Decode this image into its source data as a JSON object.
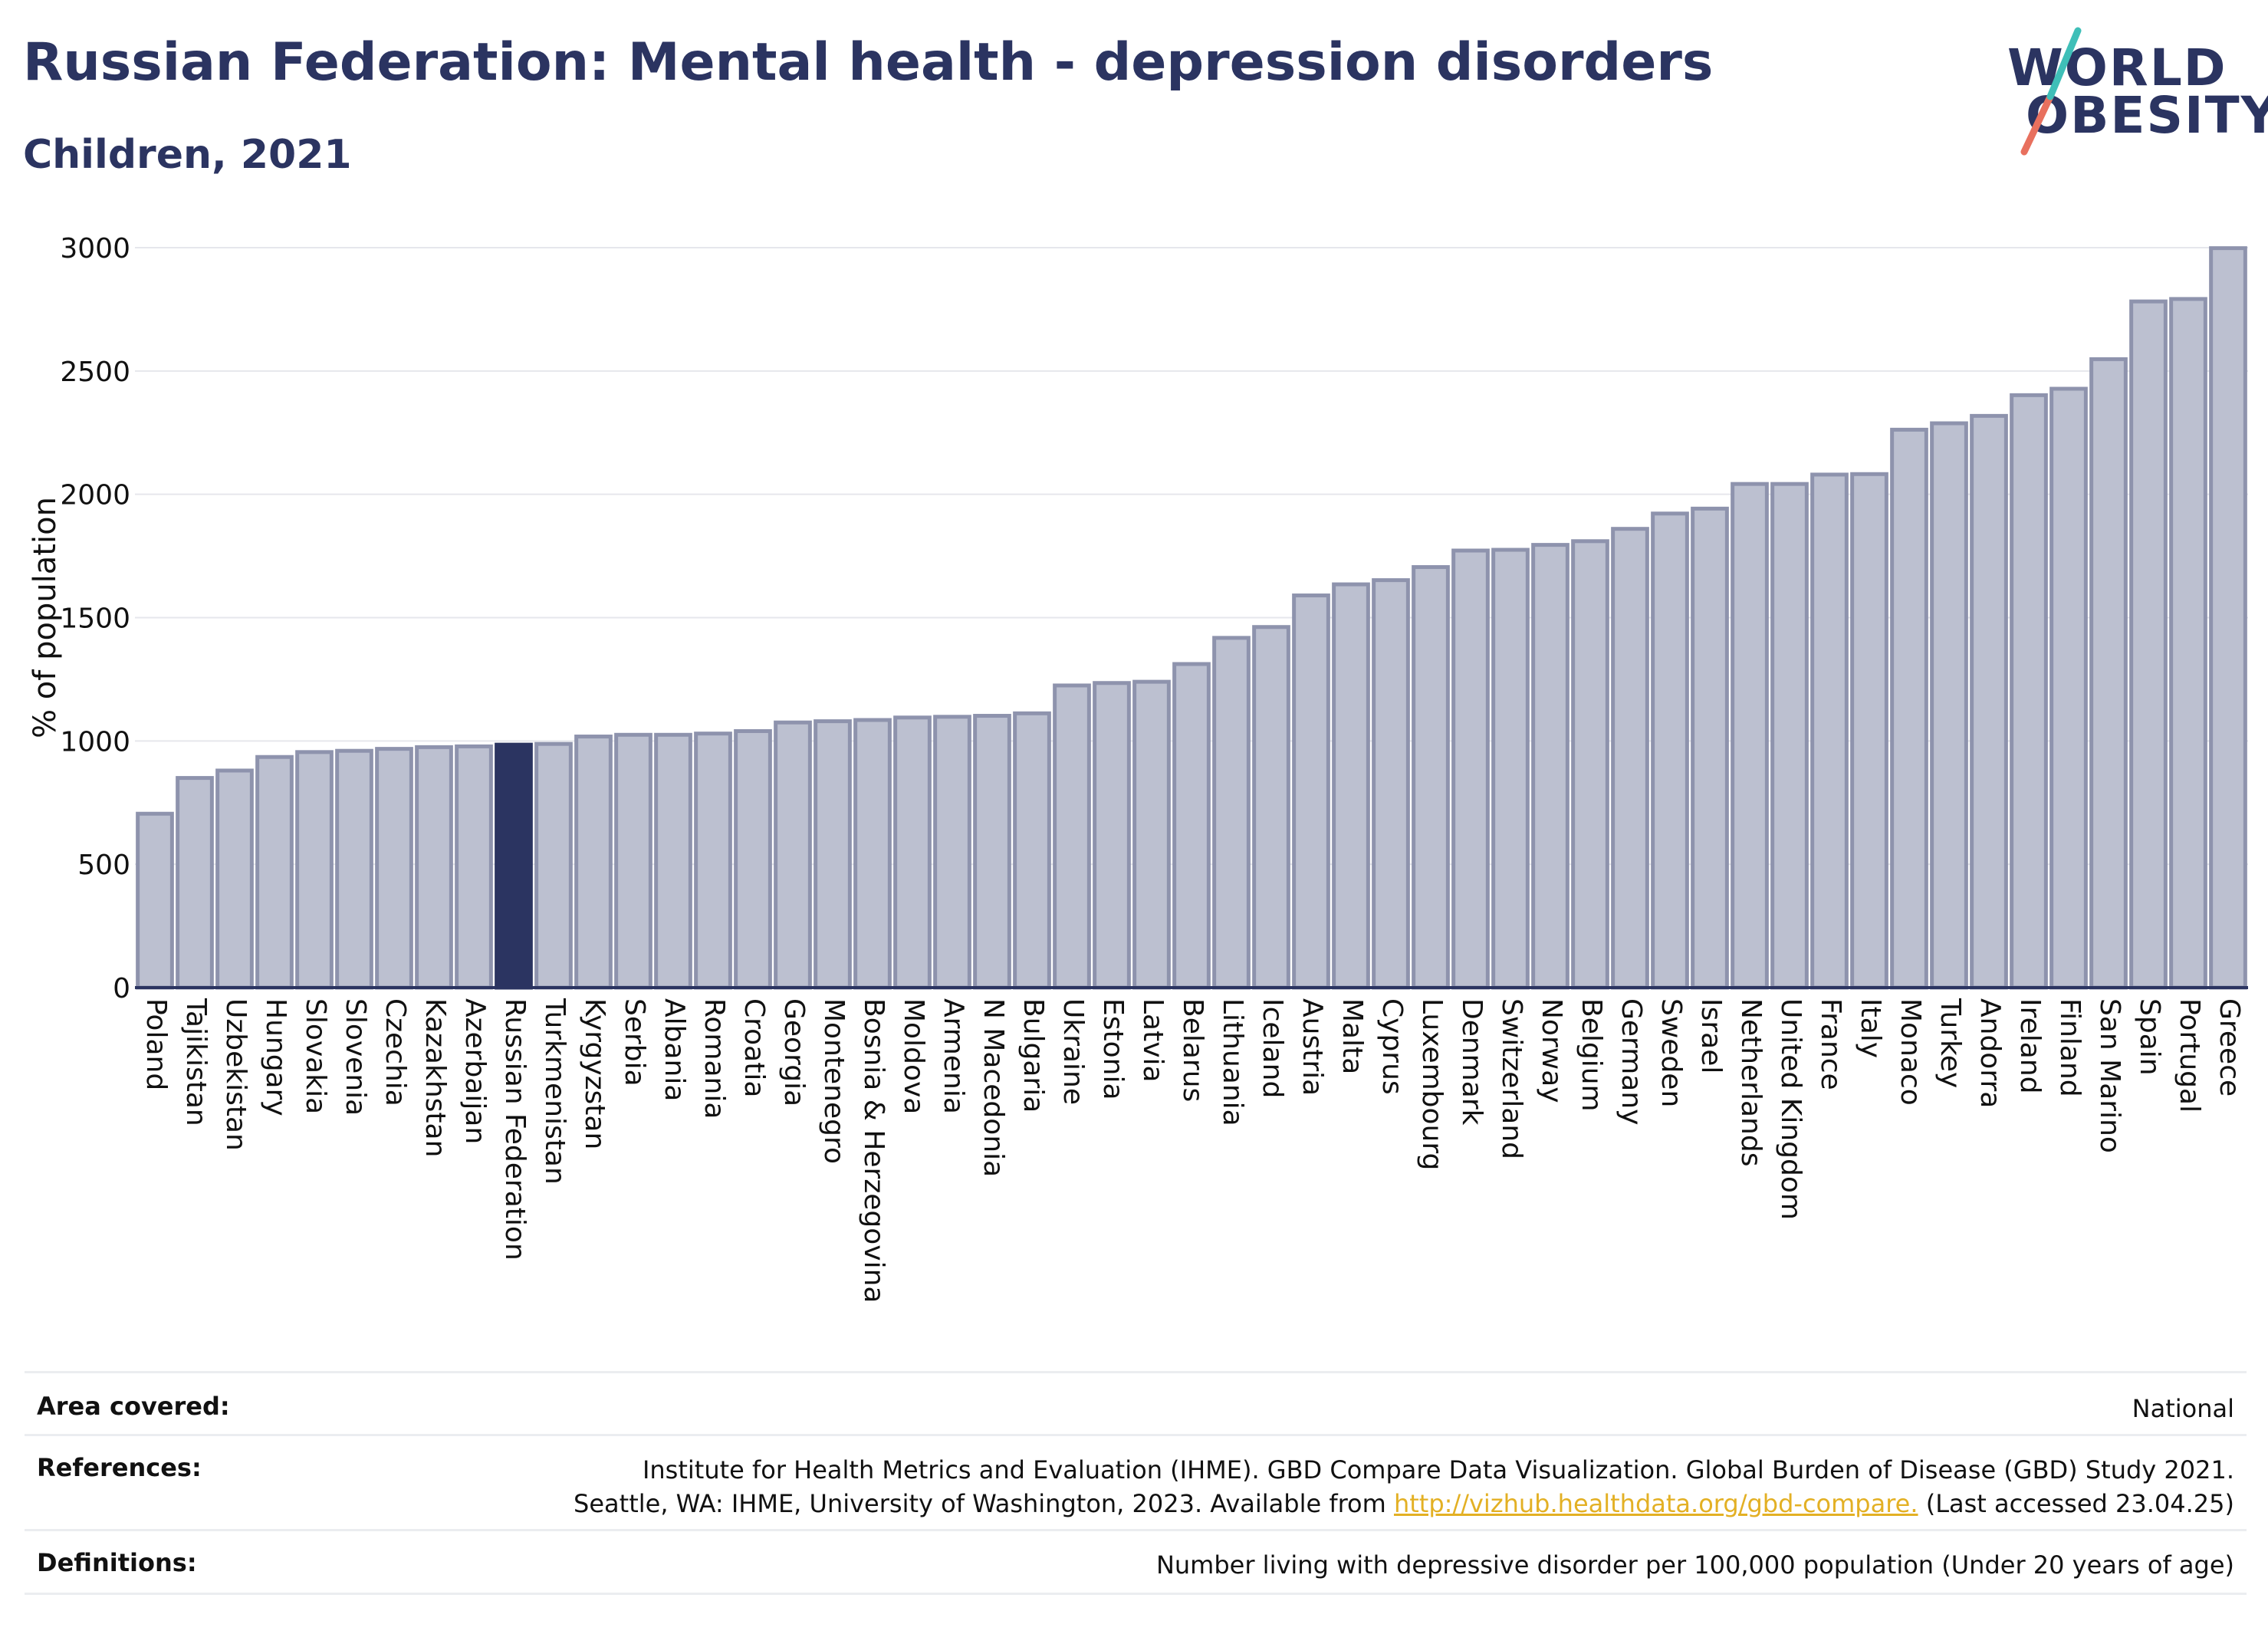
{
  "header": {
    "title": "Russian Federation: Mental health - depression disorders",
    "subtitle": "Children, 2021"
  },
  "logo": {
    "line1": "WORLD",
    "line2": "OBESITY"
  },
  "colors": {
    "bar": "#bcc0d0",
    "bar_border": "#8e93ad",
    "highlight": "#2b3461",
    "text": "#2b3461",
    "link": "#e3b024"
  },
  "chart_data": {
    "type": "bar",
    "ylabel": "% of population",
    "ylim": [
      0,
      3000
    ],
    "yticks": [
      0,
      500,
      1000,
      1500,
      2000,
      2500,
      3000
    ],
    "grid": true,
    "highlight": "Russian Federation",
    "categories": [
      "Poland",
      "Tajikistan",
      "Uzbekistan",
      "Hungary",
      "Slovakia",
      "Slovenia",
      "Czechia",
      "Kazakhstan",
      "Azerbaijan",
      "Russian Federation",
      "Turkmenistan",
      "Kyrgyzstan",
      "Serbia",
      "Albania",
      "Romania",
      "Croatia",
      "Georgia",
      "Montenegro",
      "Bosnia & Herzegovina",
      "Moldova",
      "Armenia",
      "N Macedonia",
      "Bulgaria",
      "Ukraine",
      "Estonia",
      "Latvia",
      "Belarus",
      "Lithuania",
      "Iceland",
      "Austria",
      "Malta",
      "Cyprus",
      "Luxembourg",
      "Denmark",
      "Switzerland",
      "Norway",
      "Belgium",
      "Germany",
      "Sweden",
      "Israel",
      "Netherlands",
      "United Kingdom",
      "France",
      "Italy",
      "Monaco",
      "Turkey",
      "Andorra",
      "Ireland",
      "Finland",
      "San Marino",
      "Spain",
      "Portugal",
      "Greece"
    ],
    "values": [
      705,
      850,
      880,
      935,
      955,
      960,
      968,
      975,
      978,
      985,
      988,
      1018,
      1025,
      1025,
      1030,
      1040,
      1075,
      1080,
      1085,
      1095,
      1098,
      1102,
      1112,
      1225,
      1235,
      1240,
      1312,
      1418,
      1462,
      1590,
      1635,
      1652,
      1705,
      1772,
      1775,
      1795,
      1810,
      1860,
      1922,
      1942,
      2042,
      2042,
      2080,
      2082,
      2262,
      2288,
      2318,
      2402,
      2428,
      2548,
      2782,
      2792,
      2998
    ]
  },
  "footer": {
    "area": {
      "label": "Area covered:",
      "value": "National"
    },
    "references": {
      "label": "References:",
      "line1": "Institute for Health Metrics and Evaluation (IHME). GBD Compare Data Visualization. Global Burden of Disease (GBD) Study 2021.",
      "line2_pre": "Seattle, WA: IHME, University of Washington, 2023. Available from ",
      "link": "http://vizhub.healthdata.org/gbd-compare.",
      "line2_post": " (Last accessed 23.04.25)"
    },
    "definitions": {
      "label": "Definitions:",
      "value": "Number living with depressive disorder per 100,000 population (Under 20 years of age)"
    }
  }
}
